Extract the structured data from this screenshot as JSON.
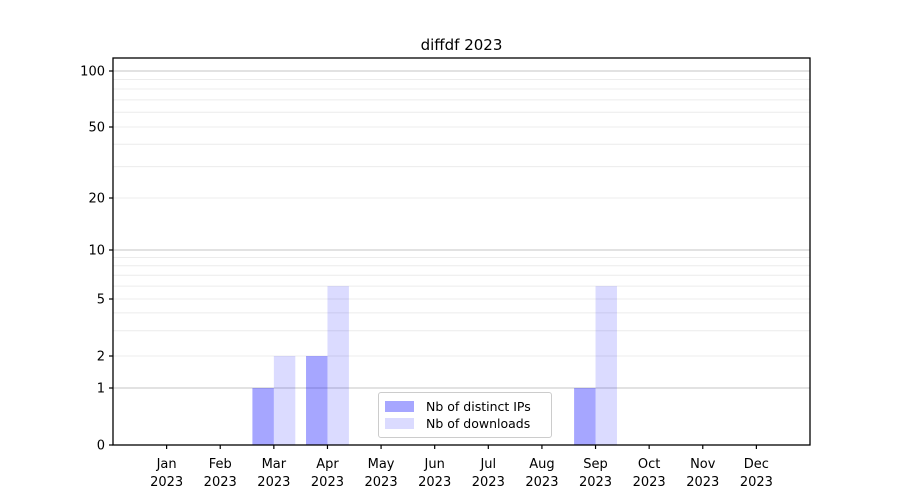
{
  "chart_data": {
    "type": "bar",
    "title": "diffdf 2023",
    "yscale": "symlog",
    "categories": [
      "Jan",
      "Feb",
      "Mar",
      "Apr",
      "May",
      "Jun",
      "Jul",
      "Aug",
      "Sep",
      "Oct",
      "Nov",
      "Dec"
    ],
    "category_year": "2023",
    "series": [
      {
        "name": "Nb of distinct IPs",
        "color": "rgba(0,0,255,0.35)",
        "values": [
          0,
          0,
          1,
          2,
          0,
          0,
          0,
          0,
          1,
          0,
          0,
          0
        ]
      },
      {
        "name": "Nb of downloads",
        "color": "rgba(0,0,255,0.14)",
        "values": [
          0,
          0,
          2,
          6,
          0,
          0,
          0,
          0,
          6,
          0,
          0,
          0
        ]
      }
    ],
    "y_tick_values": [
      0,
      1,
      2,
      5,
      10,
      20,
      50,
      100
    ],
    "y_tick_labels": [
      "0",
      "1",
      "2",
      "5",
      "10",
      "20",
      "50",
      "100"
    ],
    "y_minor_values": [
      3,
      4,
      6,
      7,
      8,
      9,
      30,
      40,
      60,
      70,
      80,
      90
    ],
    "ylim": [
      0,
      118
    ],
    "grid": "horizontal",
    "legend_position": "lower-center",
    "colors": {
      "major_grid": "#c6c6c6",
      "minor_grid": "#ececec",
      "axis": "#000000",
      "tick_label": "#000000"
    }
  }
}
